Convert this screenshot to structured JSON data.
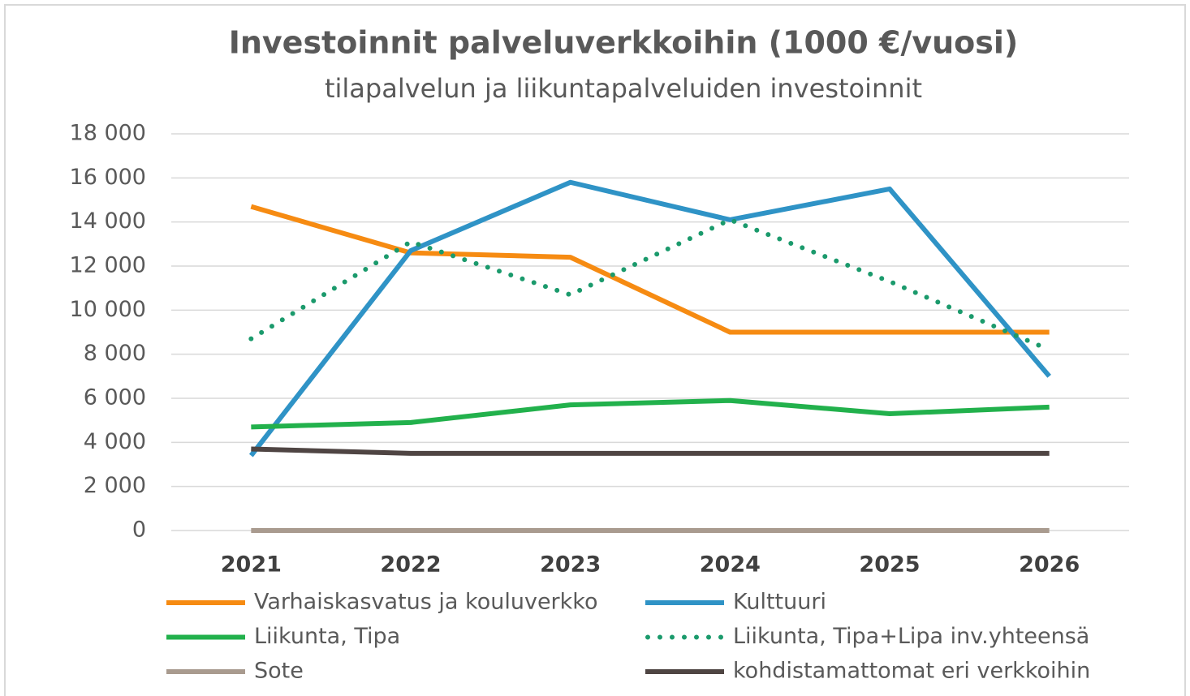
{
  "chart_data": {
    "type": "line",
    "title": "Investoinnit palveluverkkoihin  (1000 €/vuosi)",
    "subtitle": "tilapalvelun ja liikuntapalveluiden investoinnit",
    "categories": [
      "2021",
      "2022",
      "2023",
      "2024",
      "2025",
      "2026"
    ],
    "series": [
      {
        "name": "Varhaiskasvatus ja kouluverkko",
        "color": "#f68b12",
        "values": [
          14700,
          12600,
          12400,
          9000,
          9000,
          9000
        ]
      },
      {
        "name": "Kulttuuri",
        "color": "#2f93c6",
        "values": [
          3400,
          12700,
          15800,
          14100,
          15500,
          7000
        ]
      },
      {
        "name": "Liikunta, Tipa",
        "color": "#22b14c",
        "values": [
          4700,
          4900,
          5700,
          5900,
          5300,
          5600
        ]
      },
      {
        "name": "Liikunta, Tipa+Lipa inv.yhteensä",
        "color": "#1b9a6c",
        "dotted": true,
        "values": [
          8700,
          13100,
          10700,
          14100,
          11300,
          8200
        ]
      },
      {
        "name": "Sote",
        "color": "#a99b8f",
        "values": [
          0,
          0,
          0,
          0,
          0,
          0
        ]
      },
      {
        "name": "kohdistamattomat eri verkkoihin",
        "color": "#4f4543",
        "values": [
          3700,
          3500,
          3500,
          3500,
          3500,
          3500
        ]
      }
    ],
    "ylim": [
      0,
      18000
    ],
    "yticks": [
      0,
      {
        "value": 2000,
        "label": "2 000"
      },
      {
        "value": 4000,
        "label": "4 000"
      },
      {
        "value": 6000,
        "label": "6 000"
      },
      {
        "value": 8000,
        "label": "8 000"
      },
      {
        "value": 10000,
        "label": "10 000"
      },
      {
        "value": 12000,
        "label": "12 000"
      },
      {
        "value": 14000,
        "label": "14 000"
      },
      {
        "value": 16000,
        "label": "16 000"
      },
      {
        "value": 18000,
        "label": "18 000"
      }
    ],
    "grid": true
  }
}
